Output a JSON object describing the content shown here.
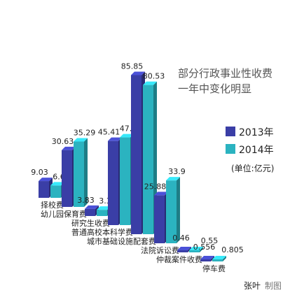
{
  "chart_data": {
    "type": "bar",
    "title_lines": [
      "部分行政事业性收费",
      "一年中变化明显"
    ],
    "categories": [
      "择校费",
      "幼儿园保育费",
      "研究生收费",
      "普通高校本科学费",
      "城市基础设施配套费",
      "法院诉讼费",
      "仲裁案件收费",
      "停车费"
    ],
    "series": [
      {
        "name": "2013年",
        "values": [
          9.03,
          30.63,
          3.83,
          45.41,
          85.85,
          25.88,
          0.46,
          0.556
        ],
        "labels": [
          "9.03",
          "30.63",
          "3.83",
          "45.41",
          "85.85",
          "25.88",
          "0.46",
          "0.556"
        ]
      },
      {
        "name": "2014年",
        "values": [
          6.63,
          35.29,
          3.33,
          47.33,
          80.53,
          33.9,
          0.55,
          0.805
        ],
        "labels": [
          "6.63",
          "35.29",
          "3.33",
          "47.33",
          "80.53",
          "33.9",
          "0.55",
          "0.805"
        ]
      }
    ],
    "unit": "(单位:亿元)",
    "colors": {
      "2013": "#3a3ea6",
      "2014": "#2bb3c0"
    },
    "grid": false
  },
  "credit": {
    "author": "张叶",
    "note": "制图"
  }
}
